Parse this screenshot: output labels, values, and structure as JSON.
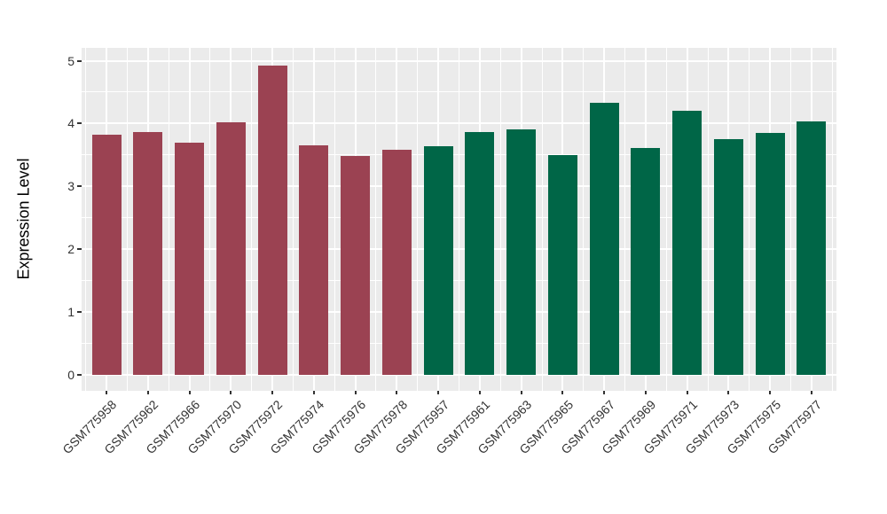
{
  "chart_data": {
    "type": "bar",
    "title": "",
    "xlabel": "",
    "ylabel": "Expression Level",
    "ylim": [
      0,
      5.2
    ],
    "yticks": [
      "0",
      "1",
      "2",
      "3",
      "4",
      "5"
    ],
    "grid": "on",
    "legend_position": "none",
    "group_colors": {
      "left-group-maroon": "#9B4252",
      "right-group-green": "#006647"
    },
    "bars": [
      {
        "label": "GSM775958",
        "value": 3.82,
        "group": "left-group-maroon",
        "color": "#9B4252"
      },
      {
        "label": "GSM775962",
        "value": 3.87,
        "group": "left-group-maroon",
        "color": "#9B4252"
      },
      {
        "label": "GSM775966",
        "value": 3.69,
        "group": "left-group-maroon",
        "color": "#9B4252"
      },
      {
        "label": "GSM775970",
        "value": 4.02,
        "group": "left-group-maroon",
        "color": "#9B4252"
      },
      {
        "label": "GSM775972",
        "value": 4.92,
        "group": "left-group-maroon",
        "color": "#9B4252"
      },
      {
        "label": "GSM775974",
        "value": 3.66,
        "group": "left-group-maroon",
        "color": "#9B4252"
      },
      {
        "label": "GSM775976",
        "value": 3.48,
        "group": "left-group-maroon",
        "color": "#9B4252"
      },
      {
        "label": "GSM775978",
        "value": 3.59,
        "group": "left-group-maroon",
        "color": "#9B4252"
      },
      {
        "label": "GSM775957",
        "value": 3.64,
        "group": "right-group-green",
        "color": "#006647"
      },
      {
        "label": "GSM775961",
        "value": 3.86,
        "group": "right-group-green",
        "color": "#006647"
      },
      {
        "label": "GSM775963",
        "value": 3.91,
        "group": "right-group-green",
        "color": "#006647"
      },
      {
        "label": "GSM775965",
        "value": 3.5,
        "group": "right-group-green",
        "color": "#006647"
      },
      {
        "label": "GSM775967",
        "value": 4.33,
        "group": "right-group-green",
        "color": "#006647"
      },
      {
        "label": "GSM775969",
        "value": 3.61,
        "group": "right-group-green",
        "color": "#006647"
      },
      {
        "label": "GSM775971",
        "value": 4.21,
        "group": "right-group-green",
        "color": "#006647"
      },
      {
        "label": "GSM775973",
        "value": 3.76,
        "group": "right-group-green",
        "color": "#006647"
      },
      {
        "label": "GSM775975",
        "value": 3.85,
        "group": "right-group-green",
        "color": "#006647"
      },
      {
        "label": "GSM775977",
        "value": 4.03,
        "group": "right-group-green",
        "color": "#006647"
      }
    ]
  },
  "style": {
    "figure_background": "#FFFFFF",
    "panel_background": "#EBEBEB",
    "gridline_color": "#FFFFFF",
    "axis_text_color": "#333333",
    "axis_title_color": "#000000",
    "tick_mark_color": "#333333"
  }
}
